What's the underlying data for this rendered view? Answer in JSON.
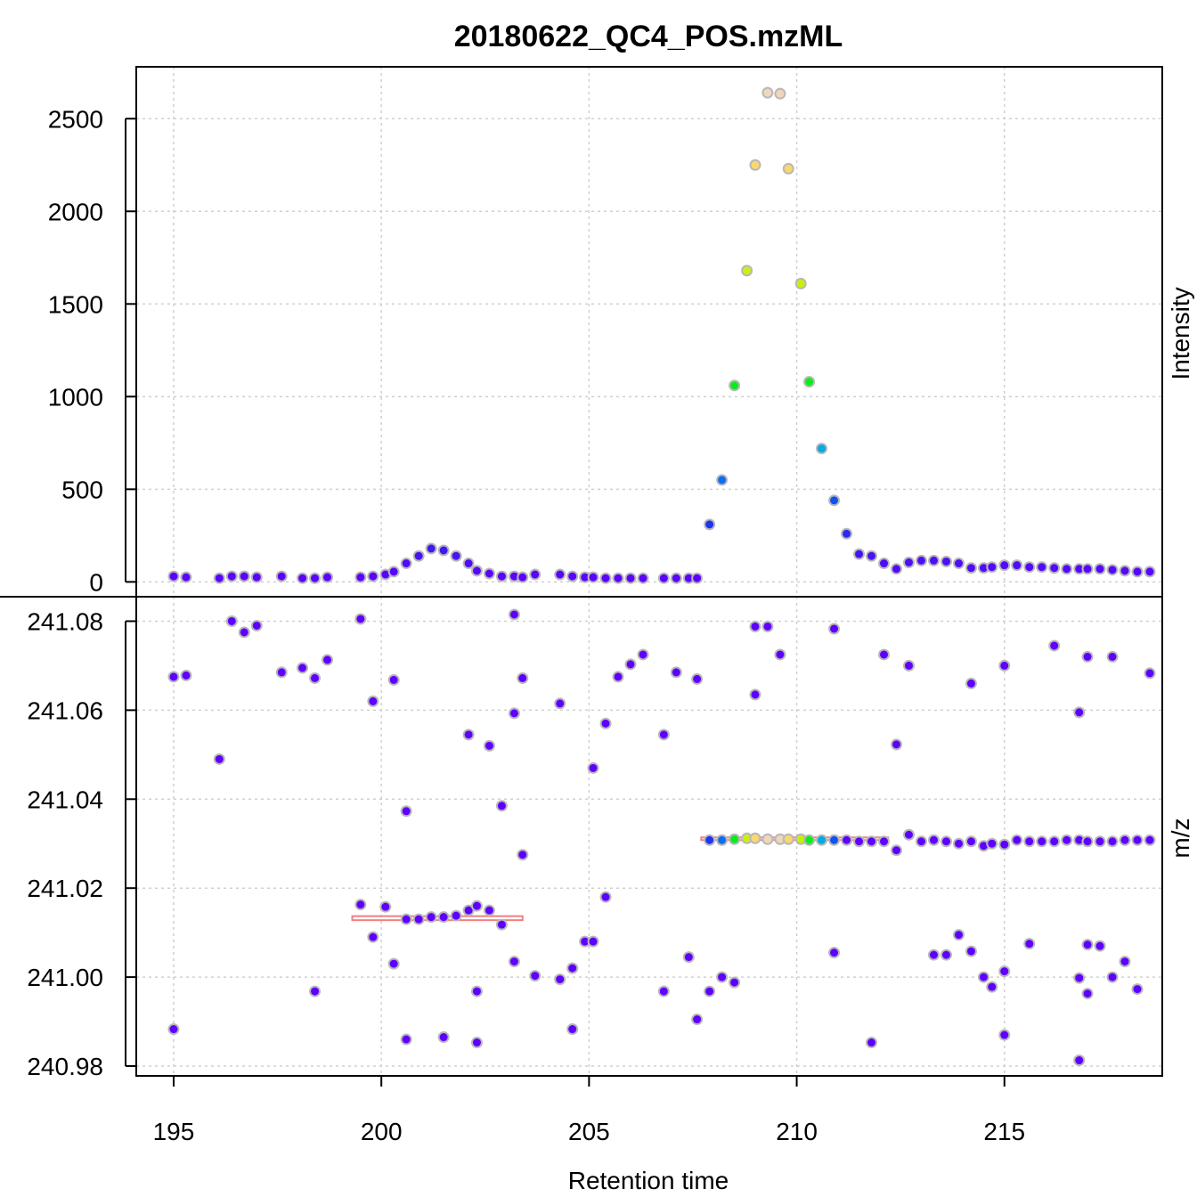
{
  "chart_data": {
    "type": "scatter",
    "title": "20180622_QC4_POS.mzML",
    "xlabel": "Retention time",
    "xlim": [
      194.1,
      218.8
    ],
    "xticks": [
      195,
      200,
      205,
      210,
      215
    ],
    "grid": true,
    "panels": [
      {
        "name": "intensity",
        "ylabel": "Intensity",
        "ylim": [
          -80,
          2780
        ],
        "yticks": [
          0,
          500,
          1000,
          1500,
          2000,
          2500
        ],
        "points": [
          {
            "x": 195.0,
            "y": 30
          },
          {
            "x": 195.3,
            "y": 25
          },
          {
            "x": 196.1,
            "y": 20
          },
          {
            "x": 196.4,
            "y": 30
          },
          {
            "x": 196.7,
            "y": 30
          },
          {
            "x": 197.0,
            "y": 25
          },
          {
            "x": 197.6,
            "y": 30
          },
          {
            "x": 198.1,
            "y": 20
          },
          {
            "x": 198.4,
            "y": 20
          },
          {
            "x": 198.7,
            "y": 25
          },
          {
            "x": 199.5,
            "y": 25
          },
          {
            "x": 199.8,
            "y": 30
          },
          {
            "x": 200.1,
            "y": 40
          },
          {
            "x": 200.3,
            "y": 55
          },
          {
            "x": 200.6,
            "y": 100
          },
          {
            "x": 200.9,
            "y": 140
          },
          {
            "x": 201.2,
            "y": 180
          },
          {
            "x": 201.5,
            "y": 170
          },
          {
            "x": 201.8,
            "y": 140
          },
          {
            "x": 202.1,
            "y": 100
          },
          {
            "x": 202.3,
            "y": 60
          },
          {
            "x": 202.6,
            "y": 45
          },
          {
            "x": 202.9,
            "y": 30
          },
          {
            "x": 203.2,
            "y": 30
          },
          {
            "x": 203.4,
            "y": 25
          },
          {
            "x": 203.7,
            "y": 40
          },
          {
            "x": 204.3,
            "y": 40
          },
          {
            "x": 204.6,
            "y": 30
          },
          {
            "x": 204.9,
            "y": 25
          },
          {
            "x": 205.1,
            "y": 25
          },
          {
            "x": 205.4,
            "y": 20
          },
          {
            "x": 205.7,
            "y": 20
          },
          {
            "x": 206.0,
            "y": 20
          },
          {
            "x": 206.3,
            "y": 20
          },
          {
            "x": 206.8,
            "y": 20
          },
          {
            "x": 207.1,
            "y": 20
          },
          {
            "x": 207.4,
            "y": 20
          },
          {
            "x": 207.6,
            "y": 20
          },
          {
            "x": 207.9,
            "y": 310
          },
          {
            "x": 208.2,
            "y": 550
          },
          {
            "x": 208.5,
            "y": 1060
          },
          {
            "x": 208.8,
            "y": 1680
          },
          {
            "x": 209.0,
            "y": 2250
          },
          {
            "x": 209.3,
            "y": 2640
          },
          {
            "x": 209.6,
            "y": 2635
          },
          {
            "x": 209.8,
            "y": 2230
          },
          {
            "x": 210.1,
            "y": 1610
          },
          {
            "x": 210.3,
            "y": 1080
          },
          {
            "x": 210.6,
            "y": 720
          },
          {
            "x": 210.9,
            "y": 440
          },
          {
            "x": 211.2,
            "y": 260
          },
          {
            "x": 211.5,
            "y": 150
          },
          {
            "x": 211.8,
            "y": 140
          },
          {
            "x": 212.1,
            "y": 100
          },
          {
            "x": 212.4,
            "y": 70
          },
          {
            "x": 212.7,
            "y": 105
          },
          {
            "x": 213.0,
            "y": 115
          },
          {
            "x": 213.3,
            "y": 115
          },
          {
            "x": 213.6,
            "y": 110
          },
          {
            "x": 213.9,
            "y": 100
          },
          {
            "x": 214.2,
            "y": 75
          },
          {
            "x": 214.5,
            "y": 75
          },
          {
            "x": 214.7,
            "y": 80
          },
          {
            "x": 215.0,
            "y": 90
          },
          {
            "x": 215.3,
            "y": 90
          },
          {
            "x": 215.6,
            "y": 80
          },
          {
            "x": 215.9,
            "y": 80
          },
          {
            "x": 216.2,
            "y": 75
          },
          {
            "x": 216.5,
            "y": 70
          },
          {
            "x": 216.8,
            "y": 70
          },
          {
            "x": 217.0,
            "y": 70
          },
          {
            "x": 217.3,
            "y": 70
          },
          {
            "x": 217.6,
            "y": 65
          },
          {
            "x": 217.9,
            "y": 60
          },
          {
            "x": 218.2,
            "y": 55
          },
          {
            "x": 218.5,
            "y": 55
          }
        ]
      },
      {
        "name": "mz",
        "ylabel": "m/z",
        "ylim": [
          240.9778,
          241.0855
        ],
        "yticks": [
          240.98,
          241.0,
          241.02,
          241.04,
          241.06,
          241.08
        ],
        "ytick_labels": [
          "240.98",
          "241.00",
          "241.02",
          "241.04",
          "241.06",
          "241.08"
        ],
        "peak_boxes": [
          {
            "xmin": 199.3,
            "xmax": 203.4,
            "ymin": 241.0128,
            "ymax": 241.0137
          },
          {
            "xmin": 207.7,
            "xmax": 212.2,
            "ymin": 241.0308,
            "ymax": 241.0314
          }
        ],
        "points": [
          {
            "x": 195.0,
            "y": 241.0675
          },
          {
            "x": 195.3,
            "y": 241.0678
          },
          {
            "x": 195.0,
            "y": 240.9883
          },
          {
            "x": 196.1,
            "y": 241.049
          },
          {
            "x": 196.4,
            "y": 241.08
          },
          {
            "x": 196.7,
            "y": 241.0775
          },
          {
            "x": 197.0,
            "y": 241.079
          },
          {
            "x": 197.6,
            "y": 241.0685
          },
          {
            "x": 198.1,
            "y": 241.0695
          },
          {
            "x": 198.4,
            "y": 241.0672
          },
          {
            "x": 198.7,
            "y": 241.0713
          },
          {
            "x": 198.4,
            "y": 240.9968
          },
          {
            "x": 199.5,
            "y": 241.0805
          },
          {
            "x": 199.8,
            "y": 241.062
          },
          {
            "x": 200.3,
            "y": 241.0668
          },
          {
            "x": 199.5,
            "y": 241.0163
          },
          {
            "x": 200.1,
            "y": 241.0158
          },
          {
            "x": 199.8,
            "y": 241.009
          },
          {
            "x": 200.3,
            "y": 241.003
          },
          {
            "x": 200.6,
            "y": 241.0373
          },
          {
            "x": 200.6,
            "y": 240.986
          },
          {
            "x": 200.6,
            "y": 241.013
          },
          {
            "x": 200.9,
            "y": 241.013
          },
          {
            "x": 201.2,
            "y": 241.0135
          },
          {
            "x": 201.5,
            "y": 241.0135
          },
          {
            "x": 201.8,
            "y": 241.0138
          },
          {
            "x": 202.1,
            "y": 241.015
          },
          {
            "x": 202.3,
            "y": 241.016
          },
          {
            "x": 202.6,
            "y": 241.015
          },
          {
            "x": 202.9,
            "y": 241.0118
          },
          {
            "x": 201.5,
            "y": 240.9865
          },
          {
            "x": 202.1,
            "y": 241.0545
          },
          {
            "x": 202.6,
            "y": 241.052
          },
          {
            "x": 202.3,
            "y": 240.9968
          },
          {
            "x": 202.3,
            "y": 240.9853
          },
          {
            "x": 202.9,
            "y": 241.0385
          },
          {
            "x": 203.2,
            "y": 241.0815
          },
          {
            "x": 203.2,
            "y": 241.0593
          },
          {
            "x": 203.2,
            "y": 241.0035
          },
          {
            "x": 203.4,
            "y": 241.0672
          },
          {
            "x": 203.4,
            "y": 241.0275
          },
          {
            "x": 203.7,
            "y": 241.0003
          },
          {
            "x": 204.3,
            "y": 241.0615
          },
          {
            "x": 204.3,
            "y": 240.9995
          },
          {
            "x": 204.6,
            "y": 241.002
          },
          {
            "x": 204.6,
            "y": 240.9883
          },
          {
            "x": 204.9,
            "y": 241.008
          },
          {
            "x": 205.1,
            "y": 241.047
          },
          {
            "x": 205.1,
            "y": 241.008
          },
          {
            "x": 205.4,
            "y": 241.057
          },
          {
            "x": 205.4,
            "y": 241.018
          },
          {
            "x": 205.7,
            "y": 241.0675
          },
          {
            "x": 206.0,
            "y": 241.0703
          },
          {
            "x": 206.3,
            "y": 241.0725
          },
          {
            "x": 206.8,
            "y": 241.0545
          },
          {
            "x": 206.8,
            "y": 240.9968
          },
          {
            "x": 207.1,
            "y": 241.0685
          },
          {
            "x": 207.4,
            "y": 241.0045
          },
          {
            "x": 207.6,
            "y": 241.067
          },
          {
            "x": 207.6,
            "y": 240.9905
          },
          {
            "x": 207.9,
            "y": 240.9968
          },
          {
            "x": 208.2,
            "y": 241.0
          },
          {
            "x": 208.5,
            "y": 240.9988
          },
          {
            "x": 209.0,
            "y": 241.0788
          },
          {
            "x": 209.0,
            "y": 241.0635
          },
          {
            "x": 209.3,
            "y": 241.0788
          },
          {
            "x": 209.6,
            "y": 241.0725
          },
          {
            "x": 210.9,
            "y": 241.0783
          },
          {
            "x": 210.9,
            "y": 241.0055
          },
          {
            "x": 211.8,
            "y": 240.9853
          },
          {
            "x": 212.1,
            "y": 241.0725
          },
          {
            "x": 212.4,
            "y": 241.0523
          },
          {
            "x": 207.9,
            "y": 241.0308
          },
          {
            "x": 208.2,
            "y": 241.0308
          },
          {
            "x": 208.5,
            "y": 241.031
          },
          {
            "x": 208.8,
            "y": 241.0312
          },
          {
            "x": 209.0,
            "y": 241.0312
          },
          {
            "x": 209.3,
            "y": 241.031
          },
          {
            "x": 209.6,
            "y": 241.031
          },
          {
            "x": 209.8,
            "y": 241.031
          },
          {
            "x": 210.1,
            "y": 241.031
          },
          {
            "x": 210.3,
            "y": 241.0308
          },
          {
            "x": 210.6,
            "y": 241.0308
          },
          {
            "x": 210.9,
            "y": 241.0308
          },
          {
            "x": 211.2,
            "y": 241.0308
          },
          {
            "x": 211.5,
            "y": 241.0305
          },
          {
            "x": 211.8,
            "y": 241.0305
          },
          {
            "x": 212.1,
            "y": 241.0305
          },
          {
            "x": 212.4,
            "y": 241.0285
          },
          {
            "x": 212.7,
            "y": 241.032
          },
          {
            "x": 213.0,
            "y": 241.0305
          },
          {
            "x": 213.3,
            "y": 241.0308
          },
          {
            "x": 213.6,
            "y": 241.0305
          },
          {
            "x": 213.9,
            "y": 241.03
          },
          {
            "x": 214.2,
            "y": 241.0305
          },
          {
            "x": 214.5,
            "y": 241.0295
          },
          {
            "x": 214.7,
            "y": 241.03
          },
          {
            "x": 215.0,
            "y": 241.0298
          },
          {
            "x": 215.3,
            "y": 241.0308
          },
          {
            "x": 215.6,
            "y": 241.0305
          },
          {
            "x": 215.9,
            "y": 241.0305
          },
          {
            "x": 216.2,
            "y": 241.0305
          },
          {
            "x": 216.5,
            "y": 241.0308
          },
          {
            "x": 216.8,
            "y": 241.0308
          },
          {
            "x": 217.0,
            "y": 241.0305
          },
          {
            "x": 217.3,
            "y": 241.0305
          },
          {
            "x": 217.6,
            "y": 241.0305
          },
          {
            "x": 217.9,
            "y": 241.0308
          },
          {
            "x": 218.2,
            "y": 241.0308
          },
          {
            "x": 218.5,
            "y": 241.0308
          },
          {
            "x": 212.7,
            "y": 241.07
          },
          {
            "x": 213.3,
            "y": 241.005
          },
          {
            "x": 213.6,
            "y": 241.005
          },
          {
            "x": 213.9,
            "y": 241.0095
          },
          {
            "x": 214.2,
            "y": 241.066
          },
          {
            "x": 214.2,
            "y": 241.0058
          },
          {
            "x": 214.5,
            "y": 241.0
          },
          {
            "x": 214.7,
            "y": 240.9978
          },
          {
            "x": 215.0,
            "y": 241.07
          },
          {
            "x": 215.0,
            "y": 241.0013
          },
          {
            "x": 215.0,
            "y": 240.987
          },
          {
            "x": 215.6,
            "y": 241.0075
          },
          {
            "x": 216.2,
            "y": 241.0745
          },
          {
            "x": 216.8,
            "y": 241.0595
          },
          {
            "x": 216.8,
            "y": 240.9998
          },
          {
            "x": 216.8,
            "y": 240.9813
          },
          {
            "x": 217.0,
            "y": 241.072
          },
          {
            "x": 217.0,
            "y": 241.0073
          },
          {
            "x": 217.0,
            "y": 240.9963
          },
          {
            "x": 217.3,
            "y": 241.007
          },
          {
            "x": 217.6,
            "y": 241.072
          },
          {
            "x": 217.6,
            "y": 241.0
          },
          {
            "x": 217.9,
            "y": 241.0035
          },
          {
            "x": 218.2,
            "y": 240.9973
          },
          {
            "x": 218.5,
            "y": 241.0683
          }
        ]
      }
    ]
  }
}
